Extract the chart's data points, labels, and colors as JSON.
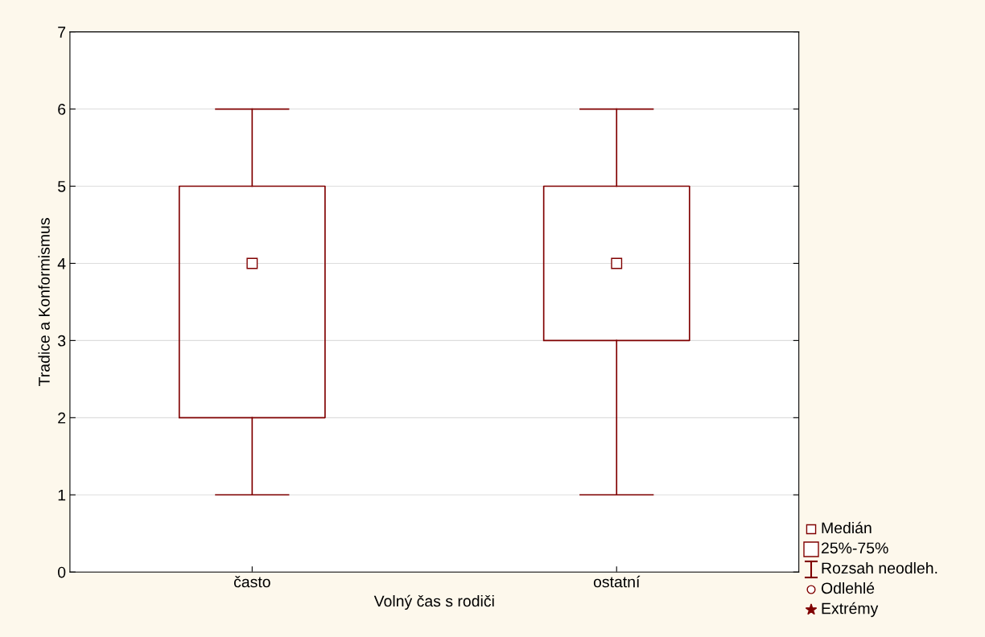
{
  "chart_data": {
    "type": "box",
    "xlabel": "Volný čas s rodiči",
    "ylabel": "Tradice a Konformismus",
    "categories": [
      "často",
      "ostatní"
    ],
    "series": [
      {
        "color": "#800000",
        "boxes": [
          {
            "low": 1,
            "q1": 2,
            "median": 4,
            "q3": 5,
            "high": 6
          },
          {
            "low": 1,
            "q1": 3,
            "median": 4,
            "q3": 5,
            "high": 6
          }
        ]
      }
    ],
    "ylim": [
      0,
      7
    ],
    "yticks": [
      0,
      1,
      2,
      3,
      4,
      5,
      6,
      7
    ],
    "grid": "y",
    "annotations": [
      "Medián",
      "25%-75%",
      "Rozsah neodleh.",
      "Odlehlé",
      "Extrémy"
    ]
  }
}
